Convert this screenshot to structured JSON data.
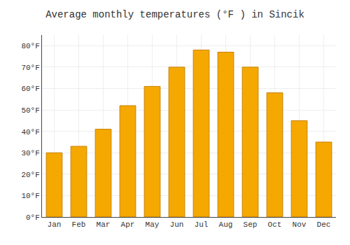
{
  "chart_data": {
    "type": "bar",
    "title": "Average monthly temperatures (°F ) in Sincik",
    "categories": [
      "Jan",
      "Feb",
      "Mar",
      "Apr",
      "May",
      "Jun",
      "Jul",
      "Aug",
      "Sep",
      "Oct",
      "Nov",
      "Dec"
    ],
    "values": [
      30,
      33,
      41,
      52,
      61,
      70,
      78,
      77,
      70,
      58,
      45,
      35
    ],
    "color": "#F5A800",
    "ylim": [
      0,
      85
    ],
    "yticks": [
      {
        "value": 0,
        "label": "0°F"
      },
      {
        "value": 10,
        "label": "10°F"
      },
      {
        "value": 20,
        "label": "20°F"
      },
      {
        "value": 30,
        "label": "30°F"
      },
      {
        "value": 40,
        "label": "40°F"
      },
      {
        "value": 50,
        "label": "50°F"
      },
      {
        "value": 60,
        "label": "60°F"
      },
      {
        "value": 70,
        "label": "70°F"
      },
      {
        "value": 80,
        "label": "80°F"
      }
    ],
    "grid": true
  }
}
